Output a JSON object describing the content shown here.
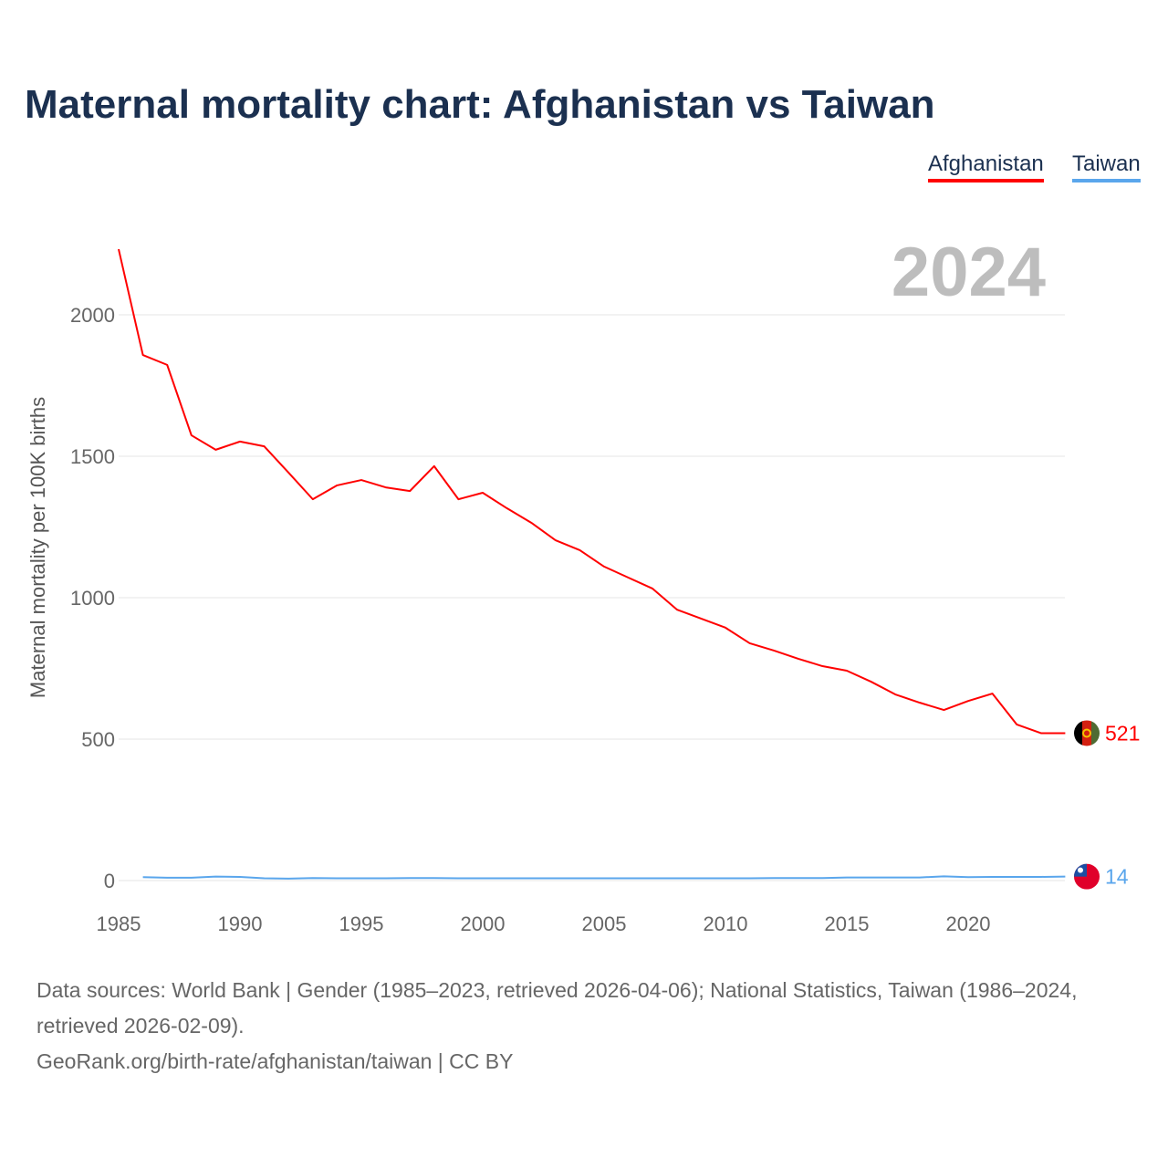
{
  "chart_data": {
    "type": "line",
    "title": "Maternal mortality chart: Afghanistan vs Taiwan",
    "ylabel": "Maternal mortality per 100K births",
    "xlabel": "",
    "current_year": "2024",
    "xlim": [
      1985,
      2024
    ],
    "ylim": [
      0,
      2250
    ],
    "x_ticks": [
      "1985",
      "1990",
      "1995",
      "2000",
      "2005",
      "2010",
      "2015",
      "2020"
    ],
    "y_ticks": [
      "0",
      "500",
      "1000",
      "1500",
      "2000"
    ],
    "legend_position": "top-right",
    "series": [
      {
        "name": "Afghanistan",
        "color": "#ff0000",
        "end_label": "521",
        "flag": "afghanistan-flag",
        "x": [
          1985,
          1986,
          1987,
          1988,
          1989,
          1990,
          1991,
          1992,
          1993,
          1994,
          1995,
          1996,
          1997,
          1998,
          1999,
          2000,
          2001,
          2002,
          2003,
          2004,
          2005,
          2006,
          2007,
          2008,
          2009,
          2010,
          2011,
          2012,
          2013,
          2014,
          2015,
          2016,
          2017,
          2018,
          2019,
          2020,
          2021,
          2022,
          2023
        ],
        "values": [
          2232,
          1858,
          1823,
          1574,
          1523,
          1552,
          1535,
          1442,
          1348,
          1397,
          1416,
          1390,
          1377,
          1465,
          1348,
          1371,
          1316,
          1265,
          1203,
          1168,
          1110,
          1071,
          1032,
          958,
          926,
          894,
          839,
          813,
          784,
          758,
          742,
          703,
          658,
          629,
          603,
          635,
          661,
          552,
          521
        ]
      },
      {
        "name": "Taiwan",
        "color": "#5aa6ec",
        "end_label": "14",
        "flag": "taiwan-flag",
        "x": [
          1986,
          1987,
          1988,
          1989,
          1990,
          1991,
          1992,
          1993,
          1994,
          1995,
          1996,
          1997,
          1998,
          1999,
          2000,
          2001,
          2002,
          2003,
          2004,
          2005,
          2006,
          2007,
          2008,
          2009,
          2010,
          2011,
          2012,
          2013,
          2014,
          2015,
          2016,
          2017,
          2018,
          2019,
          2020,
          2021,
          2022,
          2023,
          2024
        ],
        "values": [
          12,
          10,
          10,
          14,
          13,
          8,
          7,
          9,
          8,
          8,
          8,
          9,
          9,
          8,
          8,
          8,
          8,
          8,
          8,
          8,
          8,
          8,
          8,
          8,
          8,
          8,
          9,
          9,
          9,
          11,
          11,
          11,
          11,
          15,
          12,
          13,
          13,
          13,
          14
        ]
      }
    ]
  },
  "footer": {
    "sources": "Data sources: World Bank | Gender (1985–2023, retrieved 2026-04-06); National Statistics, Taiwan (1986–2024, retrieved 2026-02-09).",
    "credit": "GeoRank.org/birth-rate/afghanistan/taiwan | CC BY"
  }
}
